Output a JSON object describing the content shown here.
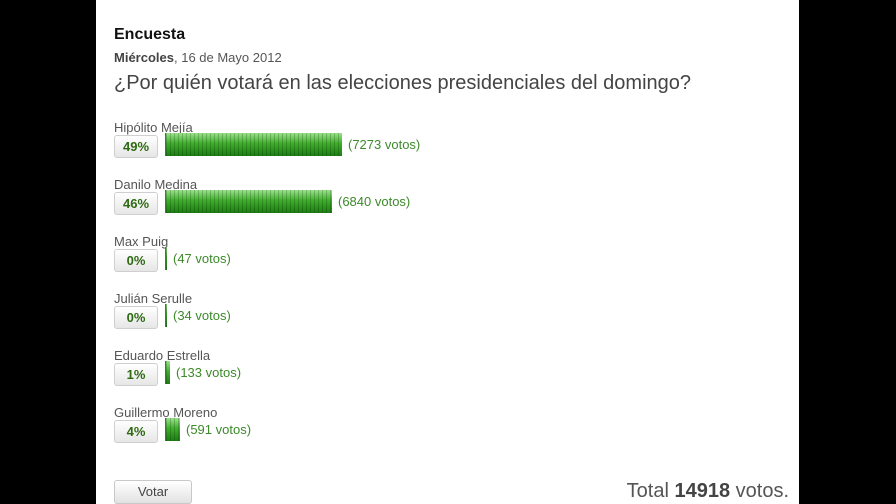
{
  "poll": {
    "title": "Encuesta",
    "date_day": "Miércoles",
    "date_rest": ", 16 de Mayo 2012",
    "question": "¿Por quién votará en las elecciones presidenciales del domingo?",
    "options": [
      {
        "name": "Hipólito Mejía",
        "percent_label": "49%",
        "percent": 49,
        "votes_label": "(7273 votos)"
      },
      {
        "name": "Danilo Medina",
        "percent_label": "46%",
        "percent": 46,
        "votes_label": "(6840 votos)"
      },
      {
        "name": "Max Puig",
        "percent_label": "0%",
        "percent": 0,
        "votes_label": "(47 votos)"
      },
      {
        "name": "Julián Serulle",
        "percent_label": "0%",
        "percent": 0,
        "votes_label": "(34 votos)"
      },
      {
        "name": "Eduardo Estrella",
        "percent_label": "1%",
        "percent": 1,
        "votes_label": "(133 votos)"
      },
      {
        "name": "Guillermo Moreno",
        "percent_label": "4%",
        "percent": 4,
        "votes_label": "(591 votos)"
      }
    ],
    "vote_button": "Votar",
    "total_prefix": "Total",
    "total_value": "14918",
    "total_suffix": "votos."
  },
  "colors": {
    "bar": "#3fae2c",
    "percent_text": "#2e6a12",
    "votes_text": "#3c8a2a",
    "background": "#000000",
    "panel": "#ffffff"
  }
}
